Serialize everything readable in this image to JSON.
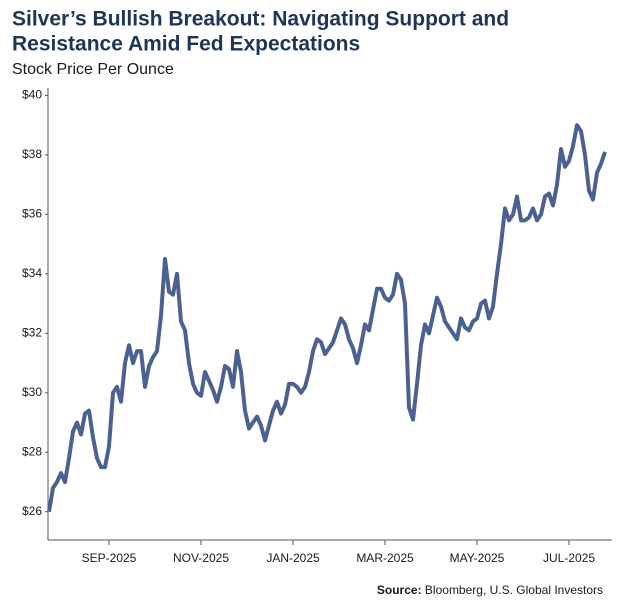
{
  "chart_data": {
    "type": "line",
    "title": [
      "Silver’s Bullish Breakout: Navigating Support and",
      "Resistance Amid Fed Expectations"
    ],
    "subtitle": "Stock Price Per Ounce",
    "source_label": "Source:",
    "source": "Bloomberg, U.S. Global Investors",
    "categories": [
      null,
      null,
      null,
      null,
      null,
      null,
      null,
      null,
      null,
      null,
      null,
      null,
      null,
      null,
      null,
      "SEP-2025",
      null,
      null,
      null,
      null,
      null,
      null,
      null,
      null,
      null,
      null,
      null,
      null,
      null,
      null,
      null,
      null,
      null,
      null,
      null,
      null,
      null,
      null,
      "NOV-2025",
      null,
      null,
      null,
      null,
      null,
      null,
      null,
      null,
      null,
      null,
      null,
      null,
      null,
      null,
      null,
      null,
      null,
      null,
      null,
      null,
      null,
      null,
      "JAN-2025",
      null,
      null,
      null,
      null,
      null,
      null,
      null,
      null,
      null,
      null,
      null,
      null,
      null,
      null,
      null,
      null,
      null,
      null,
      null,
      null,
      null,
      null,
      "MAR-2025",
      null,
      null,
      null,
      null,
      null,
      null,
      null,
      null,
      null,
      null,
      null,
      null,
      null,
      null,
      null,
      null,
      null,
      null,
      null,
      null,
      null,
      null,
      "MAY-2025",
      null,
      null,
      null,
      null,
      null,
      null,
      null,
      null,
      null,
      null,
      null,
      null,
      null,
      null,
      null,
      null,
      null,
      null,
      null,
      null,
      null,
      null,
      "JUL-2025",
      null,
      null,
      null,
      null,
      null,
      null,
      null,
      null,
      null
    ],
    "values": [
      26.0,
      26.8,
      27.0,
      27.3,
      27.0,
      27.8,
      28.7,
      29.0,
      28.6,
      29.3,
      29.4,
      28.5,
      27.8,
      27.5,
      27.5,
      28.2,
      30.0,
      30.2,
      29.7,
      31.0,
      31.6,
      31.0,
      31.4,
      31.4,
      30.2,
      30.9,
      31.2,
      31.4,
      32.6,
      34.5,
      33.4,
      33.3,
      34.0,
      32.4,
      32.1,
      31.0,
      30.3,
      30.0,
      29.9,
      30.7,
      30.4,
      30.1,
      29.7,
      30.2,
      30.9,
      30.8,
      30.2,
      31.4,
      30.7,
      29.4,
      28.8,
      29.0,
      29.2,
      28.9,
      28.4,
      28.9,
      29.4,
      29.7,
      29.3,
      29.6,
      30.3,
      30.3,
      30.2,
      30.0,
      30.2,
      30.7,
      31.4,
      31.8,
      31.7,
      31.3,
      31.5,
      31.7,
      32.1,
      32.5,
      32.3,
      31.8,
      31.5,
      31.0,
      31.6,
      32.3,
      32.1,
      32.8,
      33.5,
      33.5,
      33.2,
      33.1,
      33.3,
      34.0,
      33.8,
      33.0,
      29.5,
      29.1,
      30.3,
      31.6,
      32.3,
      32.0,
      32.6,
      33.2,
      32.9,
      32.4,
      32.2,
      32.0,
      31.8,
      32.5,
      32.2,
      32.1,
      32.4,
      32.5,
      33.0,
      33.1,
      32.5,
      32.9,
      34.0,
      35.0,
      36.2,
      35.8,
      36.0,
      36.6,
      35.8,
      35.8,
      35.9,
      36.2,
      35.8,
      36.0,
      36.6,
      36.7,
      36.3,
      37.0,
      38.2,
      37.6,
      37.8,
      38.3,
      39.0,
      38.8,
      38.0,
      36.8,
      36.5,
      37.4,
      37.7,
      38.1
    ],
    "color": "#4a6191",
    "ylim": [
      25.05,
      40.25
    ],
    "yticks": [
      {
        "value": 26,
        "label": "$26"
      },
      {
        "value": 28,
        "label": "$28"
      },
      {
        "value": 30,
        "label": "$30"
      },
      {
        "value": 32,
        "label": "$32"
      },
      {
        "value": 34,
        "label": "$34"
      },
      {
        "value": 36,
        "label": "$36"
      },
      {
        "value": 38,
        "label": "$38"
      },
      {
        "value": 40,
        "label": "$40"
      }
    ],
    "grid": false
  }
}
